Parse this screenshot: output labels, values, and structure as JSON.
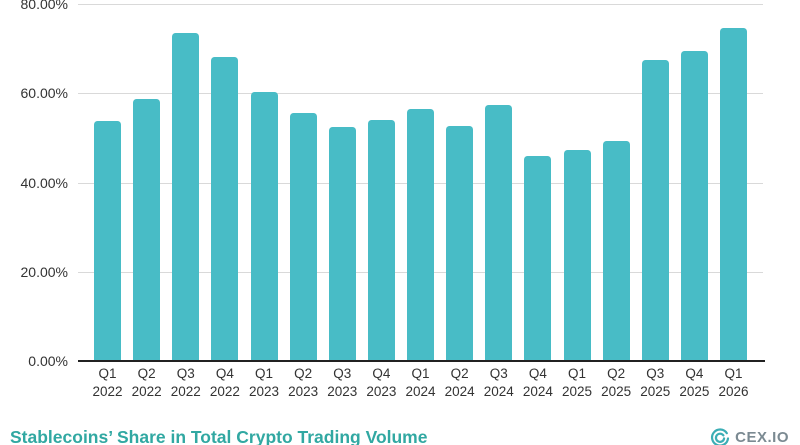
{
  "chart_data": {
    "type": "bar",
    "title": "Stablecoins’ Share in Total Crypto Trading Volume",
    "categories": [
      "Q1 2022",
      "Q2 2022",
      "Q3 2022",
      "Q4 2022",
      "Q1 2023",
      "Q2 2023",
      "Q3 2023",
      "Q4 2023",
      "Q1 2024",
      "Q2 2024",
      "Q3 2024",
      "Q4 2024",
      "Q1 2025",
      "Q2 2025",
      "Q3 2025",
      "Q4 2025",
      "Q1 2026"
    ],
    "values": [
      53.8,
      58.8,
      73.6,
      68.2,
      60.3,
      55.6,
      52.4,
      54.0,
      56.4,
      52.7,
      57.4,
      46.0,
      47.3,
      49.2,
      67.4,
      69.4,
      74.6
    ],
    "value_format": "percent",
    "xlabel": "",
    "ylabel": "",
    "ylim": [
      0,
      80
    ],
    "y_ticks": [
      {
        "value": 80,
        "label": "80.00%"
      },
      {
        "value": 60,
        "label": "60.00%"
      },
      {
        "value": 40,
        "label": "40.00%"
      },
      {
        "value": 20,
        "label": "20.00%"
      },
      {
        "value": 0,
        "label": "0.00%"
      }
    ],
    "grid": true,
    "legend_position": "none"
  },
  "footer": {
    "logo_text": "CEX.IO"
  },
  "colors": {
    "bar": "#48BCC6",
    "gridline": "#d9d9d9",
    "axis_line": "#212121",
    "tick_text": "#333333",
    "title_text": "#31A8A2",
    "logo_icon": "#3BAEB5",
    "logo_text": "#7b8a92",
    "background": "#ffffff"
  }
}
